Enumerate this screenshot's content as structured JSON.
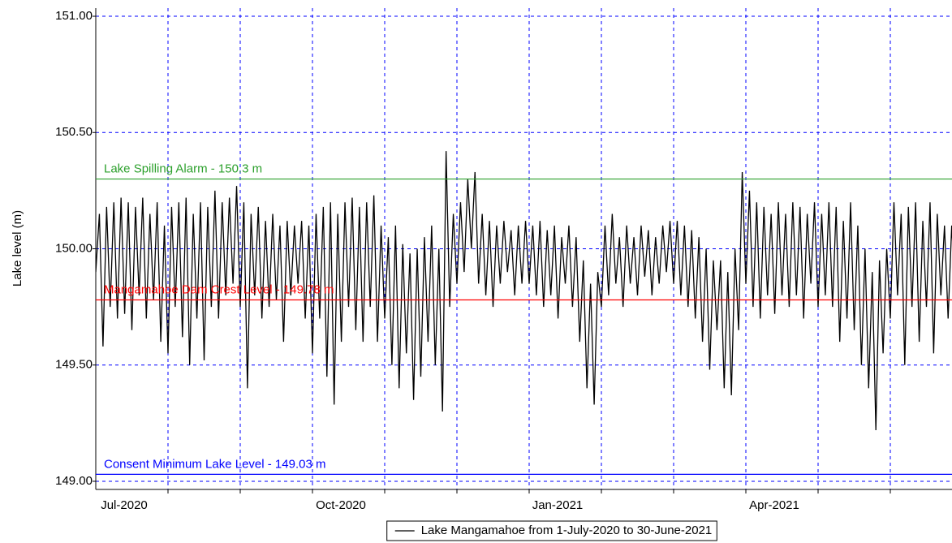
{
  "chart_data": {
    "type": "line",
    "y_label": "Lake level (m)",
    "ylim": [
      148.965,
      151.035
    ],
    "yticks": [
      {
        "value": 149,
        "label": "149.00"
      },
      {
        "value": 149.5,
        "label": "149.50"
      },
      {
        "value": 150,
        "label": "150.00"
      },
      {
        "value": 150.5,
        "label": "150.50"
      },
      {
        "value": 151,
        "label": "151.00"
      }
    ],
    "grid": true,
    "legend": "bottom",
    "reference_lines": [
      {
        "label": "Lake Spilling Alarm - 150.3 m",
        "value": 150.3,
        "color": "#2ca02c"
      },
      {
        "label": "Mangamahoe Dam Crest Level - 149.78 m",
        "value": 149.78,
        "color": "#ff0000"
      },
      {
        "label": "Consent Minimum Lake Level - 149.03 m",
        "value": 149.03,
        "color": "#0000ff"
      }
    ],
    "categories": [
      "Jul-2020",
      null,
      null,
      null,
      null,
      null,
      null,
      null,
      null,
      null,
      null,
      null,
      null,
      null,
      null,
      null,
      null,
      null,
      null,
      null,
      null,
      null,
      null,
      null,
      null,
      null,
      null,
      null,
      null,
      null,
      null,
      null,
      null,
      null,
      null,
      null,
      null,
      null,
      null,
      null,
      null,
      null,
      null,
      null,
      null,
      null,
      null,
      null,
      null,
      null,
      null,
      null,
      null,
      null,
      null,
      null,
      null,
      null,
      null,
      null,
      "Oct-2020",
      null,
      null,
      null,
      null,
      null,
      null,
      null,
      null,
      null,
      null,
      null,
      null,
      null,
      null,
      null,
      null,
      null,
      null,
      null,
      null,
      null,
      null,
      null,
      null,
      null,
      null,
      null,
      null,
      null,
      null,
      null,
      null,
      null,
      null,
      null,
      null,
      null,
      null,
      null,
      null,
      null,
      null,
      null,
      null,
      null,
      null,
      null,
      null,
      null,
      null,
      null,
      null,
      null,
      null,
      null,
      null,
      null,
      null,
      null,
      "Jan-2021",
      null,
      null,
      null,
      null,
      null,
      null,
      null,
      null,
      null,
      null,
      null,
      null,
      null,
      null,
      null,
      null,
      null,
      null,
      null,
      null,
      null,
      null,
      null,
      null,
      null,
      null,
      null,
      null,
      null,
      null,
      null,
      null,
      null,
      null,
      null,
      null,
      null,
      null,
      null,
      null,
      null,
      null,
      null,
      null,
      null,
      null,
      null,
      null,
      null,
      null,
      null,
      null,
      null,
      null,
      null,
      null,
      null,
      null,
      null,
      "Apr-2021",
      null,
      null,
      null,
      null,
      null,
      null,
      null,
      null,
      null,
      null,
      null,
      null,
      null,
      null,
      null,
      null,
      null,
      null,
      null,
      null,
      null,
      null,
      null,
      null,
      null,
      null,
      null,
      null,
      null,
      null,
      null,
      null,
      null,
      null,
      null,
      null,
      null,
      null,
      null,
      null,
      null,
      null,
      null,
      null,
      null,
      null,
      null,
      null,
      null,
      null,
      null,
      null,
      null,
      null,
      null,
      null,
      null,
      null,
      null
    ],
    "series": [
      {
        "name": "Lake Mangamahoe from 1-July-2020 to 30-June-2021",
        "color": "#000000",
        "values": [
          149.9,
          150.15,
          149.58,
          150.18,
          149.75,
          150.2,
          149.7,
          150.22,
          149.72,
          150.2,
          149.65,
          150.18,
          149.8,
          150.22,
          149.7,
          150.15,
          149.78,
          150.2,
          149.6,
          150.1,
          149.55,
          150.18,
          149.75,
          150.2,
          149.62,
          150.22,
          149.5,
          150.15,
          149.7,
          150.2,
          149.52,
          150.18,
          149.75,
          150.25,
          149.7,
          150.2,
          149.8,
          150.22,
          149.85,
          150.27,
          149.75,
          150.2,
          149.4,
          150.15,
          149.8,
          150.18,
          149.7,
          150.12,
          149.75,
          150.15,
          149.78,
          150.1,
          149.6,
          150.12,
          149.8,
          150.1,
          149.85,
          150.12,
          149.7,
          150.1,
          149.55,
          150.15,
          149.7,
          150.18,
          149.45,
          150.2,
          149.33,
          150.15,
          149.6,
          150.2,
          149.75,
          150.22,
          149.65,
          150.18,
          149.6,
          150.2,
          149.75,
          150.23,
          149.6,
          150.1,
          149.7,
          150.05,
          149.5,
          150.1,
          149.4,
          150.02,
          149.55,
          149.98,
          149.35,
          150.0,
          149.45,
          150.05,
          149.6,
          150.1,
          149.5,
          150.0,
          149.3,
          150.42,
          149.75,
          150.15,
          149.85,
          150.2,
          149.9,
          150.3,
          150.0,
          150.33,
          149.85,
          150.15,
          149.8,
          150.12,
          149.75,
          150.1,
          149.85,
          150.12,
          149.9,
          150.08,
          149.8,
          150.1,
          149.85,
          150.12,
          149.85,
          150.1,
          149.8,
          150.12,
          149.75,
          150.08,
          149.8,
          150.1,
          149.7,
          150.05,
          149.85,
          150.1,
          149.75,
          150.05,
          149.6,
          149.95,
          149.4,
          149.85,
          149.33,
          149.9,
          149.75,
          150.1,
          149.8,
          150.15,
          149.85,
          150.05,
          149.75,
          150.1,
          149.85,
          150.05,
          149.8,
          150.1,
          149.88,
          150.08,
          149.8,
          150.05,
          149.85,
          150.1,
          149.9,
          150.12,
          149.85,
          150.12,
          149.8,
          150.1,
          149.75,
          150.08,
          149.7,
          150.05,
          149.6,
          150.0,
          149.48,
          149.95,
          149.65,
          149.95,
          149.4,
          149.9,
          149.37,
          150.0,
          149.65,
          150.33,
          149.85,
          150.25,
          149.75,
          150.2,
          149.7,
          150.18,
          149.8,
          150.15,
          149.72,
          150.2,
          149.8,
          150.15,
          149.75,
          150.2,
          149.8,
          150.18,
          149.7,
          150.15,
          149.85,
          150.2,
          149.75,
          150.15,
          149.8,
          150.2,
          149.75,
          150.18,
          149.6,
          150.12,
          149.7,
          150.2,
          149.65,
          150.1,
          149.5,
          150.0,
          149.4,
          149.9,
          149.22,
          149.95,
          149.55,
          150.0,
          149.7,
          150.2,
          149.8,
          150.15,
          149.5,
          150.18,
          149.75,
          150.2,
          149.6,
          150.12,
          149.75,
          150.2,
          149.55,
          150.15,
          149.8,
          150.1,
          149.7,
          150.1,
          149.8,
          150.15
        ]
      }
    ]
  }
}
